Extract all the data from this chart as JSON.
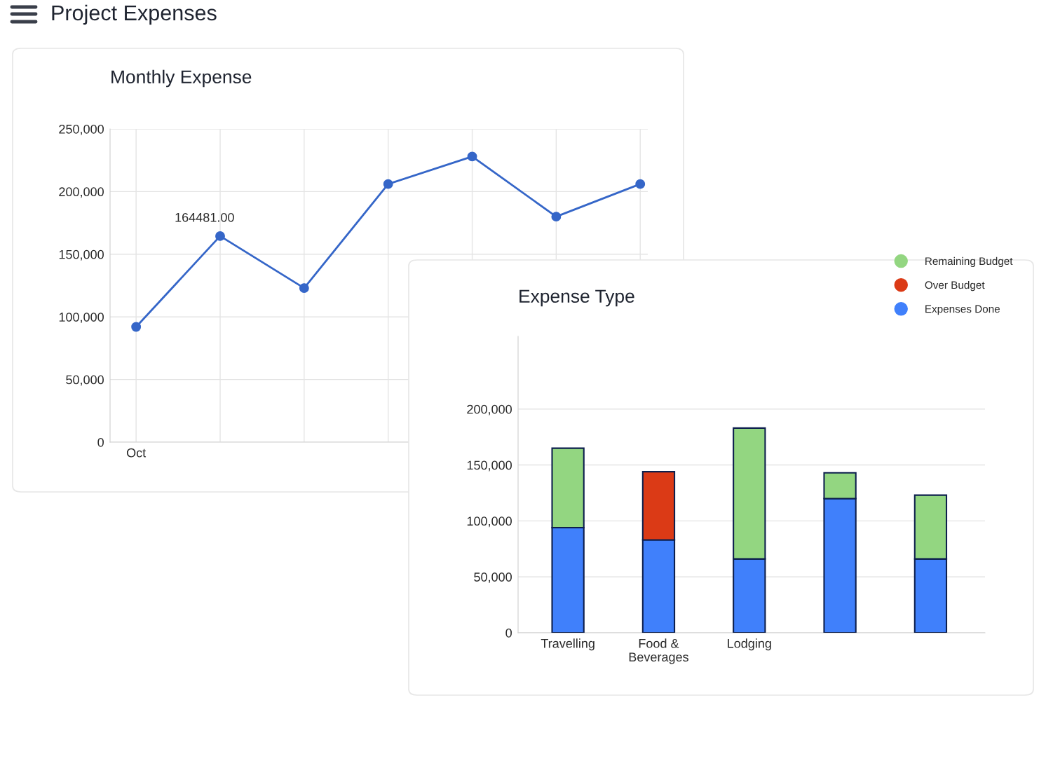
{
  "chart_data": [
    {
      "type": "line",
      "title": "Monthly Expense",
      "annotations": [
        "Project Expenses"
      ],
      "categories": [
        "Oct",
        null,
        null,
        null,
        null,
        null,
        null
      ],
      "series": [
        {
          "color": "#3566c8",
          "values": [
            92000,
            164481,
            123000,
            206000,
            228000,
            180000,
            206000
          ],
          "value_labels": [
            null,
            "164481.00",
            null,
            null,
            null,
            null,
            null
          ]
        }
      ],
      "ylim": [
        0,
        250000
      ],
      "yticks": [
        0,
        {
          "value": 50000,
          "label": "50,000"
        },
        {
          "value": 100000,
          "label": "100,000"
        },
        {
          "value": 150000,
          "label": "150,000"
        },
        {
          "value": 200000,
          "label": "200,000"
        },
        {
          "value": 250000,
          "label": "250,000"
        }
      ],
      "grid": true,
      "marker": "circle",
      "line_style": "solid"
    },
    {
      "type": "bar",
      "title": "Expense Type",
      "stacked": true,
      "legend": "top right",
      "categories": [
        "Travelling",
        "Food &\nBeverages",
        "Lodging",
        null,
        null
      ],
      "series": [
        {
          "name": "Expenses Done",
          "color": "#4080fb",
          "values": [
            94000,
            83000,
            66000,
            120000,
            66000
          ]
        },
        {
          "name": "Over Budget",
          "color": "#db3a16",
          "values": [
            null,
            61000,
            null,
            null,
            null
          ]
        },
        {
          "name": "Remaining Budget",
          "color": "#93d681",
          "values": [
            71000,
            null,
            117000,
            23000,
            57000
          ]
        }
      ],
      "ylim": [
        0,
        265000
      ],
      "yticks": [
        0,
        {
          "value": 50000,
          "label": "50,000"
        },
        {
          "value": 100000,
          "label": "100,000"
        },
        {
          "value": 150000,
          "label": "150,000"
        },
        {
          "value": 200000,
          "label": "200,000"
        }
      ],
      "grid": "y"
    }
  ]
}
